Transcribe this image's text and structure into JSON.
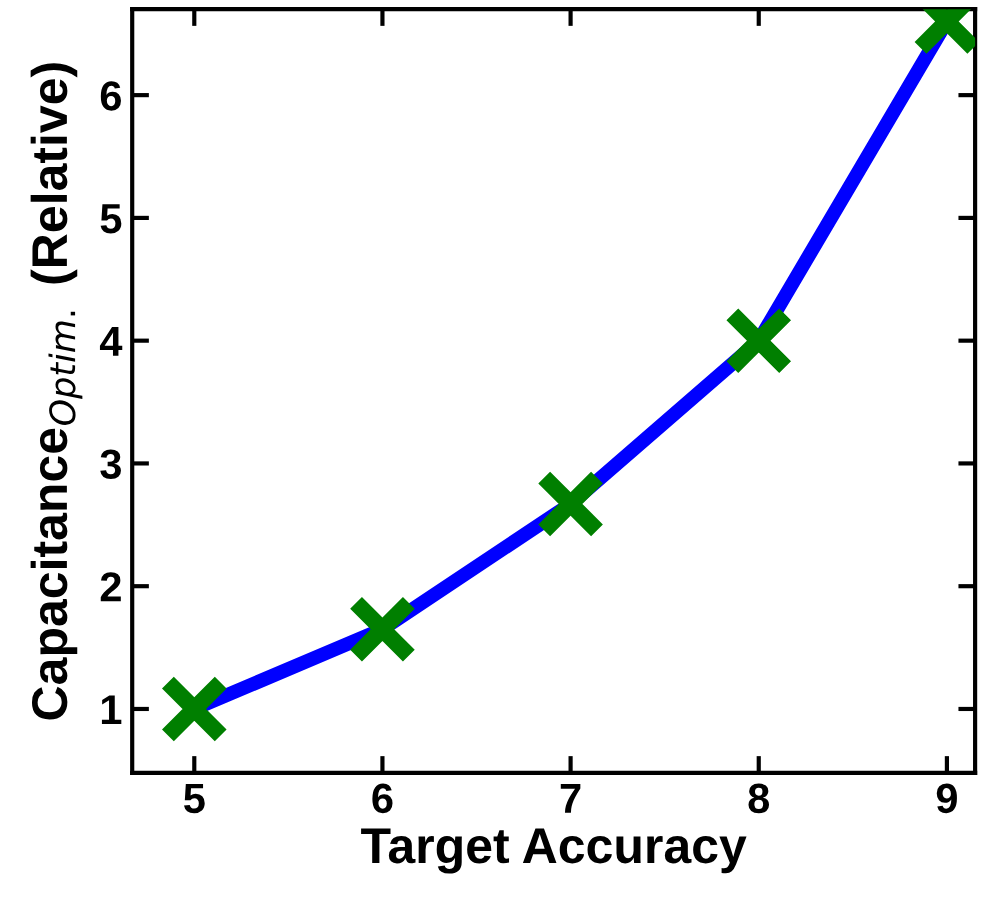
{
  "chart_data": {
    "type": "line",
    "xlabel": "Target Accuracy",
    "ylabel": "Capacitance$_{Optim.}$ (Relative)",
    "x": [
      5,
      6,
      7,
      8,
      9
    ],
    "series": [
      {
        "color": "#0000ff",
        "colors": [
          "#007f00",
          "#007f00",
          "#007f00",
          "#007f00",
          "#007f00"
        ],
        "values": [
          1.0,
          1.65,
          2.67,
          4.0,
          6.6
        ]
      }
    ],
    "xlim": [
      4.67,
      9.15
    ],
    "ylim": [
      0.48,
      6.7
    ],
    "xticks": [
      5,
      6,
      7,
      8,
      9
    ],
    "yticks": [
      1,
      2,
      3,
      4,
      5,
      6
    ],
    "marker": "cross",
    "line_style": "solid",
    "grid": false,
    "legend": false
  }
}
